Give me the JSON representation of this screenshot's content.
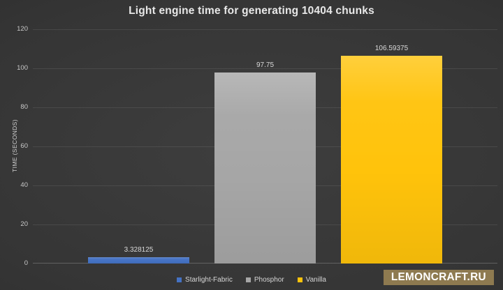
{
  "chart_data": {
    "type": "bar",
    "title": "Light engine time for generating 10404 chunks",
    "xlabel": "",
    "ylabel": "TIME (SECONDS)",
    "ymin": 0,
    "ymax": 120,
    "yticks": [
      0,
      20,
      40,
      60,
      80,
      100,
      120
    ],
    "grid": true,
    "legend_position": "bottom",
    "categories": [
      "Starlight-Fabric",
      "Phosphor",
      "Vanilla"
    ],
    "values": [
      3.328125,
      97.75,
      106.59375
    ],
    "value_labels": [
      "3.328125",
      "97.75",
      "106.59375"
    ],
    "bar_colors": [
      "#4472C4",
      "#A6A6A6",
      "#FFC30B"
    ]
  },
  "legend": {
    "items": [
      {
        "label": "Starlight-Fabric",
        "color": "#4472C4"
      },
      {
        "label": "Phosphor",
        "color": "#A6A6A6"
      },
      {
        "label": "Vanilla",
        "color": "#FFC30B"
      }
    ]
  },
  "watermark": {
    "text": "LEMONCRAFT.RU",
    "background": "#8E7A50",
    "text_color": "#FFFFFF"
  },
  "theme": {
    "background_center": "#3E3E3E",
    "background_edge": "#252525",
    "title_color": "#E8E8E8",
    "tick_color": "#C9C9C9",
    "gridline_color": "rgba(255,255,255,0.09)"
  }
}
